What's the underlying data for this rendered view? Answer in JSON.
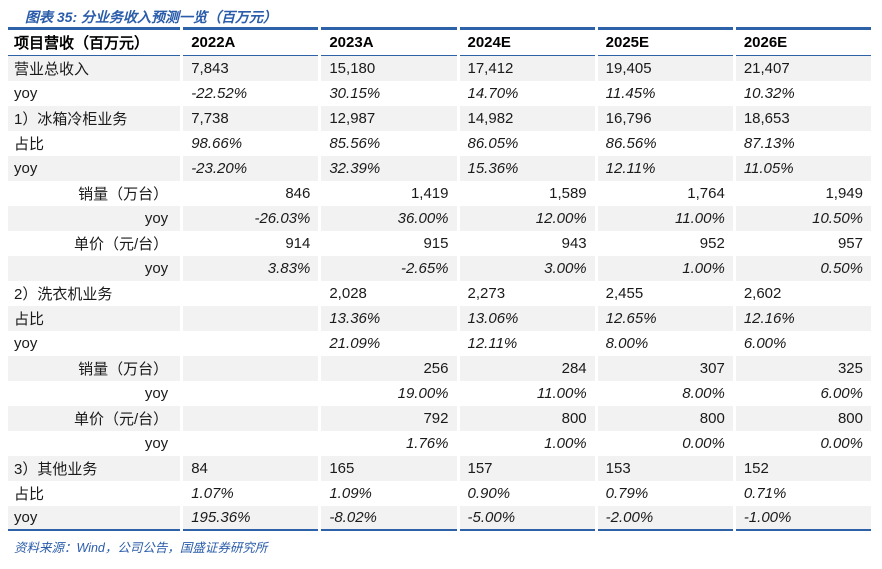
{
  "header": {
    "title": "图表 35:  分业务收入预测一览（百万元）"
  },
  "colors": {
    "accent_blue": "#2a5caa",
    "border_blue": "#2e62a8",
    "stripe_gray": "#f2f2f2",
    "text": "#1a1a1a"
  },
  "table": {
    "columns": [
      "项目营收（百万元）",
      "2022A",
      "2023A",
      "2024E",
      "2025E",
      "2026E"
    ],
    "rows": [
      {
        "label": "营业总收入",
        "values": [
          "7,843",
          "15,180",
          "17,412",
          "19,405",
          "21,407"
        ],
        "align": "left",
        "italic": false,
        "shade": true
      },
      {
        "label": "yoy",
        "values": [
          "-22.52%",
          "30.15%",
          "14.70%",
          "11.45%",
          "10.32%"
        ],
        "align": "left",
        "italic": true,
        "shade": false
      },
      {
        "label": "1）冰箱冷柜业务",
        "values": [
          "7,738",
          "12,987",
          "14,982",
          "16,796",
          "18,653"
        ],
        "align": "left",
        "italic": false,
        "shade": true
      },
      {
        "label": "占比",
        "values": [
          "98.66%",
          "85.56%",
          "86.05%",
          "86.56%",
          "87.13%"
        ],
        "align": "left",
        "italic": true,
        "shade": false
      },
      {
        "label": "yoy",
        "values": [
          "-23.20%",
          "32.39%",
          "15.36%",
          "12.11%",
          "11.05%"
        ],
        "align": "left",
        "italic": true,
        "shade": true
      },
      {
        "label": "销量（万台）",
        "values": [
          "846",
          "1,419",
          "1,589",
          "1,764",
          "1,949"
        ],
        "align": "right",
        "italic": false,
        "shade": false
      },
      {
        "label": "yoy",
        "values": [
          "-26.03%",
          "36.00%",
          "12.00%",
          "11.00%",
          "10.50%"
        ],
        "align": "right",
        "italic": true,
        "shade": true
      },
      {
        "label": "单价（元/台）",
        "values": [
          "914",
          "915",
          "943",
          "952",
          "957"
        ],
        "align": "right",
        "italic": false,
        "shade": false
      },
      {
        "label": "yoy",
        "values": [
          "3.83%",
          "-2.65%",
          "3.00%",
          "1.00%",
          "0.50%"
        ],
        "align": "right",
        "italic": true,
        "shade": true
      },
      {
        "label": "2）洗衣机业务",
        "values": [
          "",
          "2,028",
          "2,273",
          "2,455",
          "2,602"
        ],
        "align": "left",
        "italic": false,
        "shade": false
      },
      {
        "label": "占比",
        "values": [
          "",
          "13.36%",
          "13.06%",
          "12.65%",
          "12.16%"
        ],
        "align": "left",
        "italic": true,
        "shade": true
      },
      {
        "label": "yoy",
        "values": [
          "",
          "21.09%",
          "12.11%",
          "8.00%",
          "6.00%"
        ],
        "align": "left",
        "italic": true,
        "shade": false
      },
      {
        "label": "销量（万台）",
        "values": [
          "",
          "256",
          "284",
          "307",
          "325"
        ],
        "align": "right",
        "italic": false,
        "shade": true
      },
      {
        "label": "yoy",
        "values": [
          "",
          "19.00%",
          "11.00%",
          "8.00%",
          "6.00%"
        ],
        "align": "right",
        "italic": true,
        "shade": false
      },
      {
        "label": "单价（元/台）",
        "values": [
          "",
          "792",
          "800",
          "800",
          "800"
        ],
        "align": "right",
        "italic": false,
        "shade": true
      },
      {
        "label": "yoy",
        "values": [
          "",
          "1.76%",
          "1.00%",
          "0.00%",
          "0.00%"
        ],
        "align": "right",
        "italic": true,
        "shade": false
      },
      {
        "label": "3）其他业务",
        "values": [
          "84",
          "165",
          "157",
          "153",
          "152"
        ],
        "align": "left",
        "italic": false,
        "shade": true
      },
      {
        "label": "占比",
        "values": [
          "1.07%",
          "1.09%",
          "0.90%",
          "0.79%",
          "0.71%"
        ],
        "align": "left",
        "italic": true,
        "shade": false
      },
      {
        "label": "yoy",
        "values": [
          "195.36%",
          "-8.02%",
          "-5.00%",
          "-2.00%",
          "-1.00%"
        ],
        "align": "left",
        "italic": true,
        "shade": true
      }
    ]
  },
  "footer": {
    "source": "资料来源：Wind，公司公告，国盛证券研究所"
  }
}
